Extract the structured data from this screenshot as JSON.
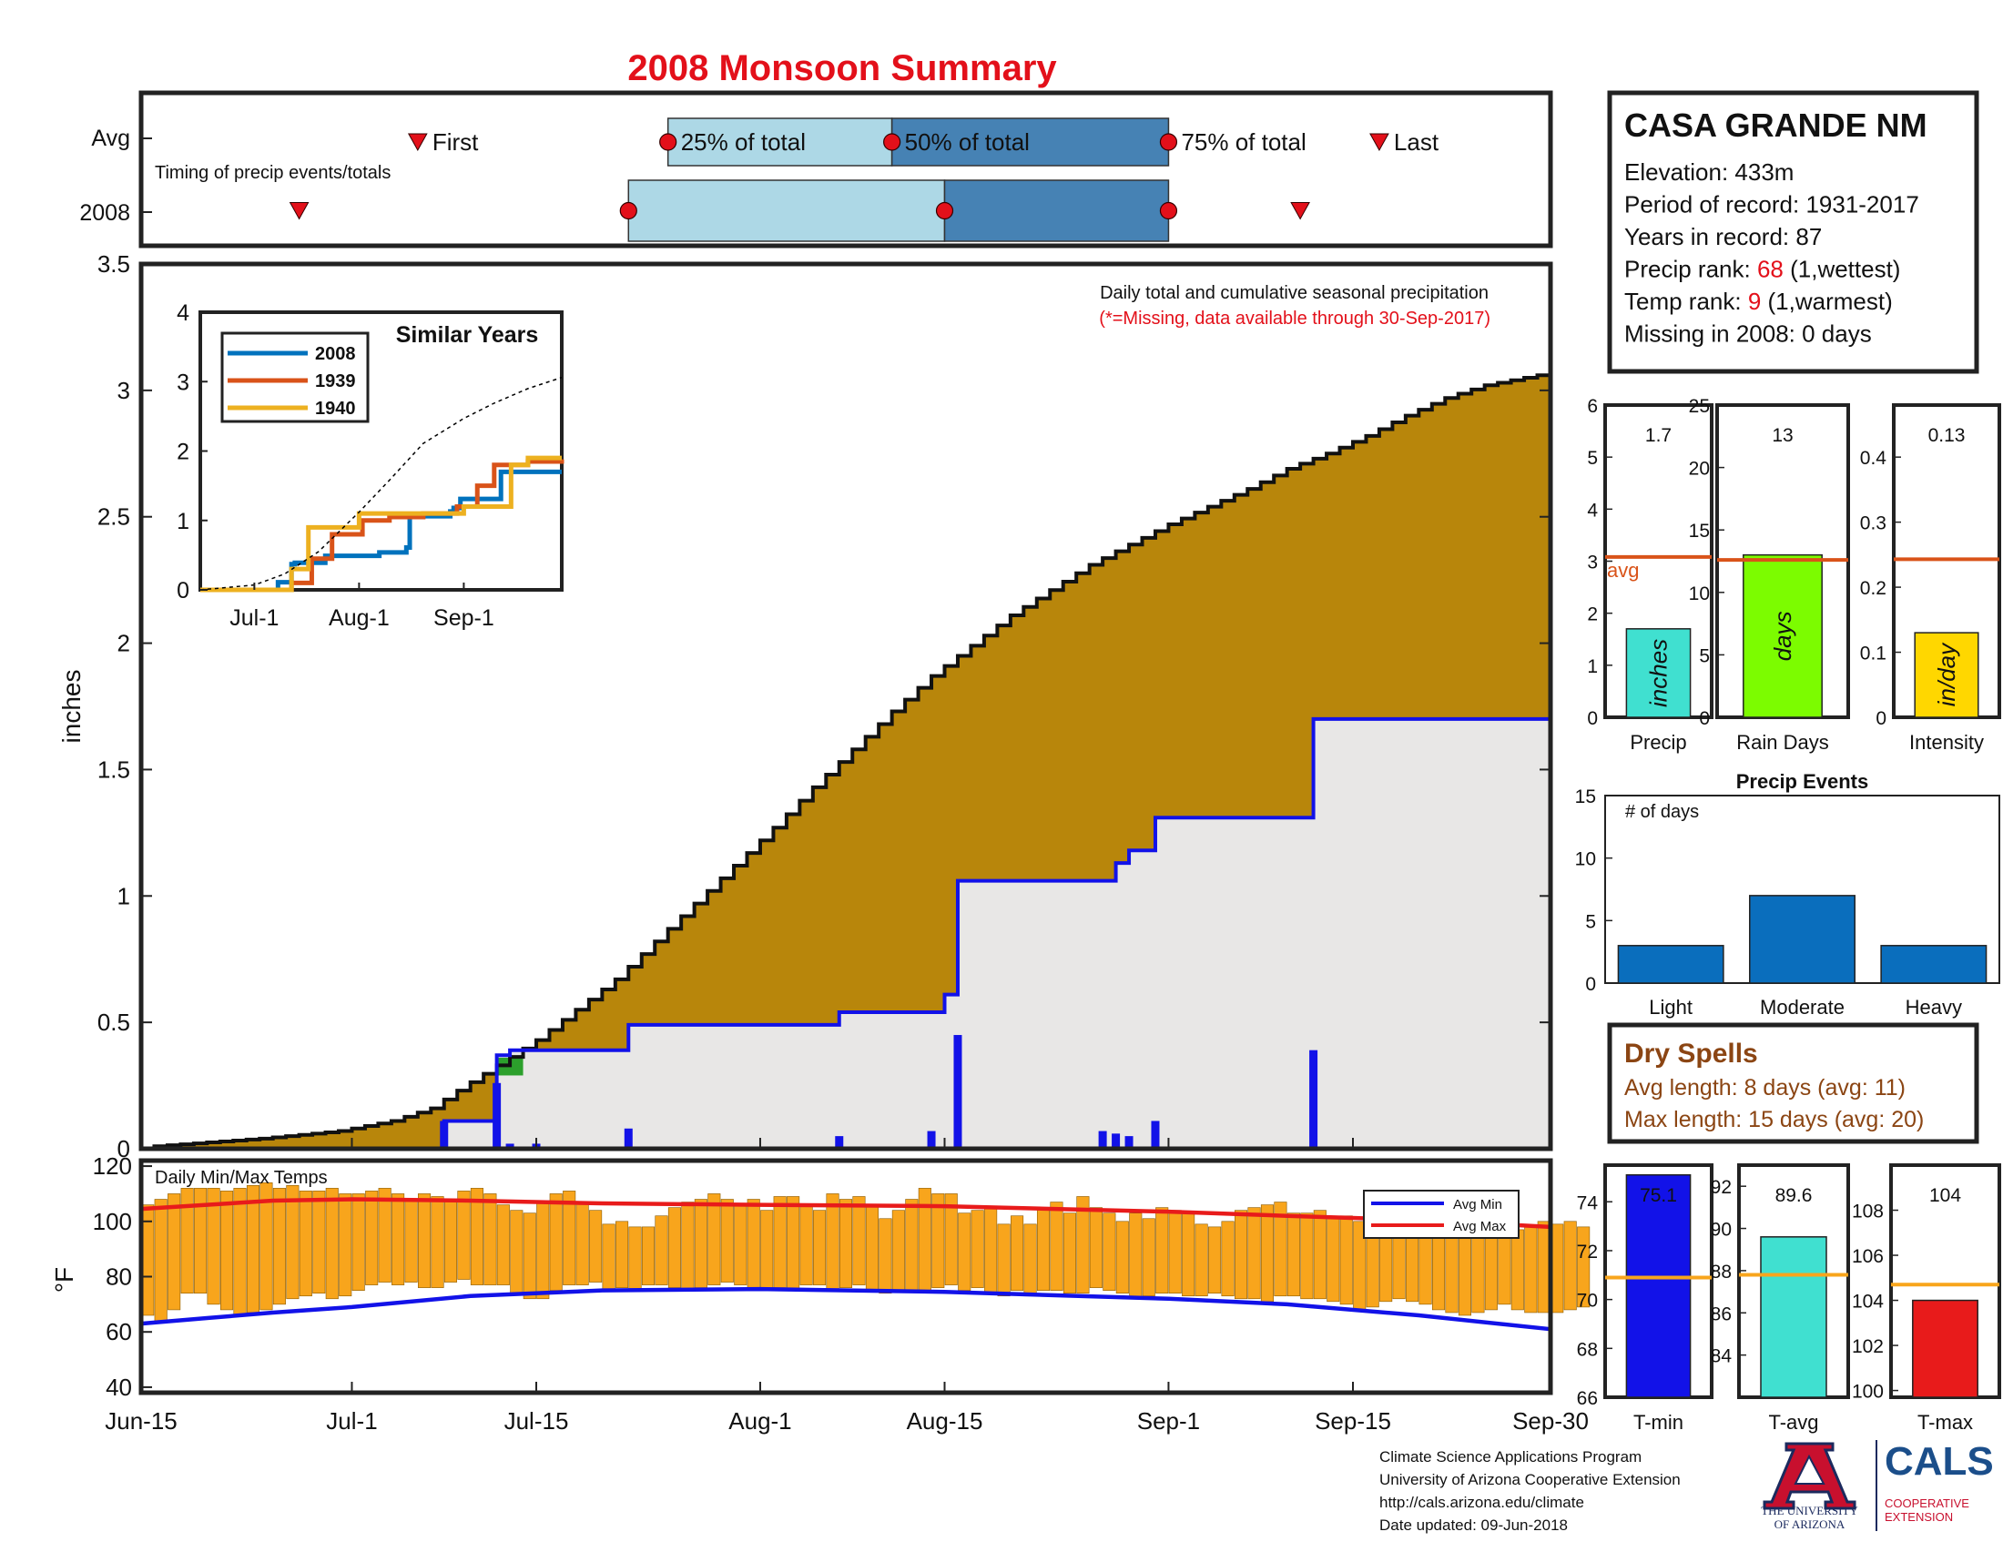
{
  "title": "2008 Monsoon Summary",
  "colors": {
    "title": "#e3101a",
    "cumulative_fill": "#b8860b",
    "gray_fill": "#e8e7e6",
    "blue": "#1212e8",
    "orange_bars": "#f8a51c",
    "red": "#e81b1b",
    "light_box": "#add8e6",
    "dark_box": "#4682b4",
    "dry_text": "#8b4513",
    "teal": "#40e0d0",
    "green": "#7cfc00",
    "yellow": "#ffd700",
    "hist_blue": "#0a6ebd",
    "avg_line_orange": "#d95319",
    "temp_avg_line": "#f8a51c"
  },
  "timing": {
    "row_labels": [
      "Avg",
      "2008"
    ],
    "caption": "Timing of precip events/totals",
    "avg": {
      "first": "Jul-6",
      "first_label": "First",
      "p25": "Jul-25",
      "p25_label": "25% of total",
      "p50": "Aug-11",
      "p50_label": "50% of total",
      "p75": "Sep-1",
      "p75_label": "75% of total",
      "last": "Sep-17",
      "last_label": "Last"
    },
    "year": {
      "first": "Jun-27",
      "p25": "Jul-22",
      "p50": "Aug-15",
      "p75": "Sep-1",
      "last": "Sep-11"
    }
  },
  "station": {
    "name": "CASA GRANDE NM",
    "lines": [
      {
        "label": "Elevation: ",
        "value": "433m",
        "suffix": ""
      },
      {
        "label": "Period of record: ",
        "value": "1931-2017",
        "suffix": ""
      },
      {
        "label": "Years in record: ",
        "value": "87",
        "suffix": ""
      },
      {
        "label": "Precip rank: ",
        "value": "68",
        "suffix": " (1,wettest)",
        "highlight": true
      },
      {
        "label": "Temp rank: ",
        "value": "9",
        "suffix": " (1,warmest)",
        "highlight": true
      },
      {
        "label": "Missing in 2008: ",
        "value": "0 days",
        "suffix": ""
      }
    ]
  },
  "chart_data": [
    {
      "id": "main-precip",
      "type": "area",
      "caption": "Daily total and cumulative seasonal precipitation",
      "note": "(*=Missing, data available through 30-Sep-2017)",
      "ylabel": "inches",
      "ylim": [
        0,
        3.5
      ],
      "yticks": [
        "0",
        "0.5",
        "1",
        "1.5",
        "2",
        "2.5",
        "3",
        "3.5"
      ],
      "x_ticks": [
        "Jun-15",
        "Jul-1",
        "Jul-15",
        "Aug-1",
        "Aug-15",
        "Sep-1",
        "Sep-15",
        "Sep-30"
      ],
      "avg_cumulative": {
        "name": "Average cumulative",
        "x": [
          "Jun-17",
          "Jun-25",
          "Jul-1",
          "Jul-5",
          "Jul-8",
          "Jul-10",
          "Jul-13",
          "Jul-16",
          "Jul-19",
          "Jul-22",
          "Jul-25",
          "Jul-28",
          "Jul-31",
          "Aug-3",
          "Aug-6",
          "Aug-9",
          "Aug-12",
          "Aug-15",
          "Aug-18",
          "Aug-21",
          "Aug-24",
          "Aug-27",
          "Aug-30",
          "Sep-2",
          "Sep-5",
          "Sep-8",
          "Sep-11",
          "Sep-14",
          "Sep-17",
          "Sep-20",
          "Sep-23",
          "Sep-26",
          "Sep-30"
        ],
        "y": [
          0.01,
          0.04,
          0.07,
          0.11,
          0.16,
          0.23,
          0.33,
          0.43,
          0.55,
          0.67,
          0.82,
          0.97,
          1.12,
          1.27,
          1.43,
          1.58,
          1.73,
          1.87,
          1.99,
          2.11,
          2.21,
          2.31,
          2.39,
          2.47,
          2.54,
          2.61,
          2.69,
          2.75,
          2.82,
          2.9,
          2.97,
          3.02,
          3.06
        ]
      },
      "year_cumulative": {
        "name": "2008 cumulative",
        "x": [
          "Jun-15",
          "Jul-5",
          "Jul-8",
          "Jul-10",
          "Jul-12",
          "Jul-13",
          "Jul-22",
          "Aug-7",
          "Aug-14",
          "Aug-15",
          "Aug-16",
          "Aug-27",
          "Aug-28",
          "Aug-29",
          "Aug-31",
          "Sep-11",
          "Sep-12",
          "Sep-30"
        ],
        "y": [
          0.0,
          0.0,
          0.11,
          0.11,
          0.37,
          0.39,
          0.49,
          0.54,
          0.54,
          0.61,
          1.06,
          1.06,
          1.13,
          1.18,
          1.31,
          1.31,
          1.7,
          1.7
        ]
      },
      "daily_bars": {
        "name": "2008 daily",
        "x": [
          "Jul-8",
          "Jul-12",
          "Jul-13",
          "Jul-15",
          "Jul-22",
          "Aug-7",
          "Aug-14",
          "Aug-16",
          "Aug-27",
          "Aug-28",
          "Aug-29",
          "Aug-31",
          "Sep-12"
        ],
        "y": [
          0.11,
          0.26,
          0.02,
          0.02,
          0.08,
          0.05,
          0.07,
          0.45,
          0.07,
          0.06,
          0.05,
          0.11,
          0.39
        ]
      }
    },
    {
      "id": "inset-similar",
      "type": "line",
      "title": "Similar Years",
      "ylim": [
        0,
        4
      ],
      "yticks": [
        "0",
        "1",
        "2",
        "3",
        "4"
      ],
      "x_ticks": [
        "Jul-1",
        "Aug-1",
        "Sep-1"
      ],
      "series": [
        {
          "name": "2008",
          "color": "#0072bd",
          "x": [
            "Jun-15",
            "Jul-5",
            "Jul-8",
            "Jul-10",
            "Jul-12",
            "Jul-13",
            "Jul-22",
            "Aug-7",
            "Aug-14",
            "Aug-15",
            "Aug-16",
            "Aug-27",
            "Aug-28",
            "Aug-29",
            "Aug-31",
            "Sep-11",
            "Sep-12",
            "Sep-30"
          ],
          "y": [
            0.0,
            0.0,
            0.11,
            0.11,
            0.37,
            0.39,
            0.49,
            0.54,
            0.54,
            0.61,
            1.06,
            1.06,
            1.13,
            1.18,
            1.31,
            1.31,
            1.7,
            1.7
          ]
        },
        {
          "name": "1939",
          "color": "#d95319",
          "x": [
            "Jun-15",
            "Jul-10",
            "Jul-12",
            "Jul-18",
            "Jul-24",
            "Aug-2",
            "Aug-10",
            "Aug-20",
            "Aug-30",
            "Sep-5",
            "Sep-10",
            "Sep-20",
            "Sep-30"
          ],
          "y": [
            0.0,
            0.0,
            0.1,
            0.45,
            0.8,
            1.0,
            1.05,
            1.1,
            1.2,
            1.5,
            1.8,
            1.85,
            1.88
          ]
        },
        {
          "name": "1940",
          "color": "#edb120",
          "x": [
            "Jun-15",
            "Jul-8",
            "Jul-12",
            "Jul-17",
            "Jul-25",
            "Aug-1",
            "Aug-8",
            "Aug-20",
            "Sep-1",
            "Sep-10",
            "Sep-15",
            "Sep-20",
            "Sep-30"
          ],
          "y": [
            0.0,
            0.0,
            0.3,
            0.9,
            0.9,
            1.1,
            1.1,
            1.1,
            1.2,
            1.2,
            1.8,
            1.9,
            1.9
          ]
        },
        {
          "name": "avg",
          "color": "#000000",
          "dashed": true,
          "x": [
            "Jun-15",
            "Jul-1",
            "Jul-10",
            "Jul-20",
            "Aug-1",
            "Aug-10",
            "Aug-20",
            "Sep-1",
            "Sep-10",
            "Sep-20",
            "Sep-30"
          ],
          "y": [
            0.0,
            0.07,
            0.23,
            0.55,
            1.12,
            1.58,
            2.11,
            2.47,
            2.69,
            2.9,
            3.06
          ]
        }
      ]
    },
    {
      "id": "temps",
      "type": "bar",
      "title": "Daily Min/Max Temps",
      "ylabel": "°F",
      "ylim": [
        38,
        122
      ],
      "yticks": [
        "40",
        "60",
        "80",
        "100",
        "120"
      ],
      "legend": [
        "Avg Min",
        "Avg Max"
      ],
      "avg_min": {
        "x": [
          "Jun-15",
          "Jun-20",
          "Jun-25",
          "Jul-1",
          "Jul-10",
          "Jul-20",
          "Aug-1",
          "Aug-15",
          "Sep-1",
          "Sep-10",
          "Sep-20",
          "Sep-30"
        ],
        "y": [
          63,
          65,
          67,
          69,
          73,
          75,
          75.5,
          74.5,
          72,
          70,
          66,
          61
        ]
      },
      "avg_max": {
        "x": [
          "Jun-15",
          "Jun-25",
          "Jul-1",
          "Jul-10",
          "Jul-20",
          "Aug-1",
          "Aug-15",
          "Sep-1",
          "Sep-10",
          "Sep-20",
          "Sep-30"
        ],
        "y": [
          104.5,
          107.5,
          108,
          107.5,
          106.5,
          106,
          105.5,
          103.5,
          102,
          100.5,
          98
        ]
      },
      "daily_max": [
        106,
        108,
        110,
        112,
        112,
        112,
        111,
        112,
        113,
        114,
        112,
        113,
        111,
        111,
        112,
        110,
        110,
        111,
        112,
        110,
        108,
        110,
        109,
        108,
        111,
        112,
        110,
        106,
        104,
        103,
        107,
        110,
        111,
        107,
        104,
        99,
        100,
        98,
        98,
        102,
        105,
        107,
        108,
        110,
        108,
        106,
        108,
        104,
        109,
        109,
        106,
        104,
        110,
        108,
        109,
        106,
        101,
        104,
        108,
        112,
        110,
        110,
        103,
        104,
        105,
        99,
        102,
        99,
        105,
        107,
        103,
        109,
        105,
        103,
        100,
        103,
        101,
        105,
        104,
        103,
        99,
        98,
        100,
        104,
        105,
        106,
        107,
        103,
        103,
        104,
        101,
        102,
        100,
        98,
        97,
        99,
        102,
        104,
        103,
        104,
        105,
        98,
        98,
        97,
        97,
        98,
        100,
        99,
        100,
        98
      ],
      "daily_min": [
        66,
        64,
        68,
        74,
        74,
        70,
        68,
        66,
        67,
        68,
        70,
        72,
        73,
        74,
        72,
        73,
        75,
        77,
        78,
        77,
        78,
        76,
        76,
        78,
        79,
        77,
        77,
        77,
        74,
        72,
        72,
        75,
        77,
        77,
        78,
        75,
        76,
        75,
        77,
        77,
        76,
        75,
        76,
        77,
        78,
        77,
        75,
        76,
        76,
        75,
        77,
        77,
        75,
        76,
        77,
        75,
        74,
        75,
        75,
        75,
        76,
        77,
        75,
        76,
        74,
        73,
        75,
        73,
        75,
        75,
        74,
        74,
        76,
        75,
        74,
        72,
        73,
        74,
        74,
        73,
        73,
        74,
        73,
        72,
        72,
        71,
        73,
        73,
        72,
        72,
        71,
        70,
        68,
        69,
        71,
        72,
        71,
        70,
        68,
        67,
        66,
        67,
        68,
        70,
        68,
        67,
        67,
        67,
        68,
        69
      ],
      "x_ticks": [
        "Jun-15",
        "Jul-1",
        "Jul-15",
        "Aug-1",
        "Aug-15",
        "Sep-1",
        "Sep-15",
        "Sep-30"
      ]
    },
    {
      "id": "bars-precip",
      "type": "bar",
      "categories": [
        "Precip"
      ],
      "values": [
        1.7
      ],
      "value_label": "1.7",
      "avg": 3.08,
      "avg_label": "avg",
      "bar_text": "inches",
      "ylim": [
        0,
        6
      ],
      "yticks": [
        "0",
        "1",
        "2",
        "3",
        "4",
        "5",
        "6"
      ]
    },
    {
      "id": "bars-raindays",
      "type": "bar",
      "categories": [
        "Rain Days"
      ],
      "values": [
        13
      ],
      "value_label": "13",
      "avg": 12.6,
      "bar_text": "days",
      "ylim": [
        0,
        25
      ],
      "yticks": [
        "0",
        "5",
        "10",
        "15",
        "20",
        "25"
      ]
    },
    {
      "id": "bars-intensity",
      "type": "bar",
      "categories": [
        "Intensity"
      ],
      "values": [
        0.13
      ],
      "value_label": "0.13",
      "avg": 0.243,
      "bar_text": "in/day",
      "ylim": [
        0,
        0.48
      ],
      "yticks": [
        "0",
        "0.1",
        "0.2",
        "0.3",
        "0.4"
      ]
    },
    {
      "id": "precip-events",
      "type": "bar",
      "title": "Precip Events",
      "ylabel_inside": "# of days",
      "categories": [
        "Light",
        "Moderate",
        "Heavy"
      ],
      "values": [
        3,
        7,
        3
      ],
      "ylim": [
        0,
        15
      ],
      "yticks": [
        "0",
        "5",
        "10",
        "15"
      ]
    },
    {
      "id": "bars-tmin",
      "type": "bar",
      "categories": [
        "T-min"
      ],
      "values": [
        75.1
      ],
      "value_label": "75.1",
      "avg": 70.9,
      "ylim": [
        66,
        75.5
      ],
      "yticks": [
        "66",
        "68",
        "70",
        "72",
        "74"
      ]
    },
    {
      "id": "bars-tavg",
      "type": "bar",
      "categories": [
        "T-avg"
      ],
      "values": [
        89.6
      ],
      "value_label": "89.6",
      "avg": 87.8,
      "ylim": [
        82,
        93
      ],
      "yticks": [
        "84",
        "86",
        "88",
        "90",
        "92"
      ]
    },
    {
      "id": "bars-tmax",
      "type": "bar",
      "categories": [
        "T-max"
      ],
      "values": [
        104
      ],
      "value_label": "104",
      "avg": 104.7,
      "ylim": [
        99.7,
        110
      ],
      "yticks": [
        "100",
        "102",
        "104",
        "106",
        "108"
      ]
    }
  ],
  "dry_spells": {
    "title": "Dry Spells",
    "avg_length": "Avg length: 8 days (avg: 11)",
    "max_length": "Max length: 15 days (avg: 20)"
  },
  "footer": {
    "lines": [
      "Climate Science Applications Program",
      "University of Arizona Cooperative Extension",
      "http://cals.arizona.edu/climate",
      " Date updated: 09-Jun-2018"
    ]
  },
  "logos": {
    "ua_letter": "A",
    "ua_text": [
      "THE UNIVERSITY",
      "OF ARIZONA"
    ],
    "cals_word": "CALS",
    "cals_sub": [
      "COOPERATIVE",
      "EXTENSION"
    ]
  }
}
